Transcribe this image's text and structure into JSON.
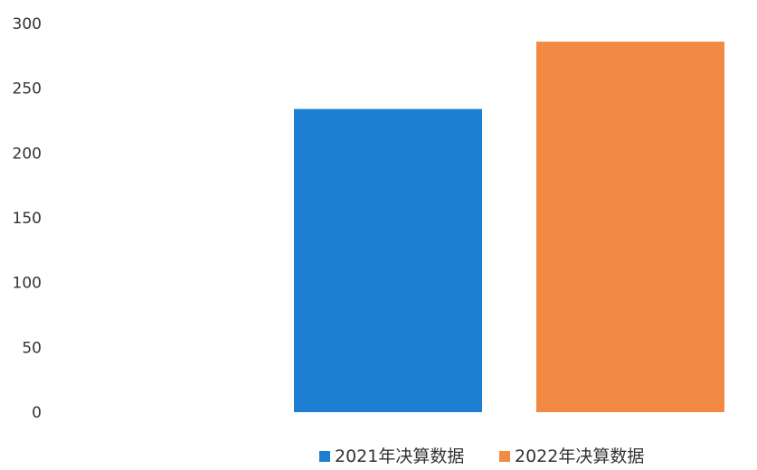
{
  "chart_data": {
    "type": "bar",
    "title": "",
    "xlabel": "",
    "ylabel": "",
    "ylim": [
      0,
      300
    ],
    "yticks": [
      0,
      50,
      100,
      150,
      200,
      250,
      300
    ],
    "grid": false,
    "legend_position": "bottom",
    "series": [
      {
        "name": "2021年决算数据",
        "values": [
          234
        ],
        "color": "#1c7fd1"
      },
      {
        "name": "2022年决算数据",
        "values": [
          286
        ],
        "color": "#f28a44"
      }
    ]
  }
}
